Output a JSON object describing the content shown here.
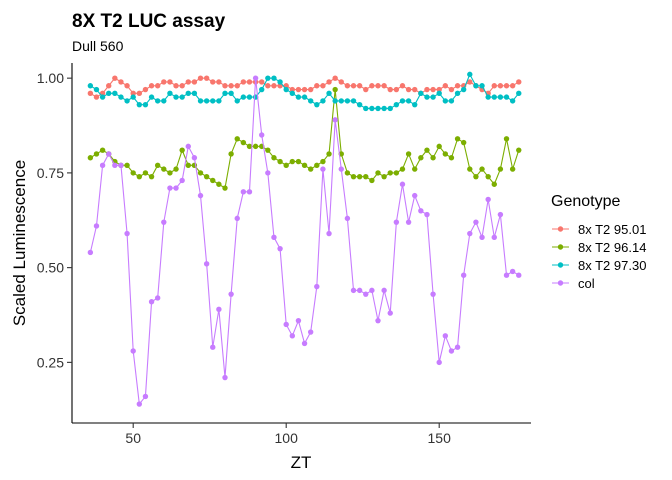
{
  "chart_data": {
    "type": "line",
    "title": "8X T2 LUC assay",
    "subtitle": "Dull 560",
    "xlabel": "ZT",
    "ylabel": "Scaled Luminescence",
    "xlim": [
      30,
      180
    ],
    "ylim": [
      0.09,
      1.04
    ],
    "xticks": [
      50,
      100,
      150
    ],
    "yticks": [
      0.25,
      0.5,
      0.75,
      1.0
    ],
    "xtick_labels": [
      "50",
      "100",
      "150"
    ],
    "ytick_labels": [
      "0.25",
      "0.50",
      "0.75",
      "1.00"
    ],
    "grid": false,
    "legend": {
      "title": "Genotype",
      "position": "right"
    },
    "x": [
      36,
      38,
      40,
      42,
      44,
      46,
      48,
      50,
      52,
      54,
      56,
      58,
      60,
      62,
      64,
      66,
      68,
      70,
      72,
      74,
      76,
      78,
      80,
      82,
      84,
      86,
      88,
      90,
      92,
      94,
      96,
      98,
      100,
      102,
      104,
      106,
      108,
      110,
      112,
      114,
      116,
      118,
      120,
      122,
      124,
      126,
      128,
      130,
      132,
      134,
      136,
      138,
      140,
      142,
      144,
      146,
      148,
      150,
      152,
      154,
      156,
      158,
      160,
      162,
      164,
      166,
      168,
      170,
      172,
      174,
      176
    ],
    "series": [
      {
        "name": "8x T2 95.01",
        "color": "#F8766D",
        "values": [
          0.96,
          0.95,
          0.96,
          0.98,
          1.0,
          0.99,
          0.98,
          0.96,
          0.96,
          0.97,
          0.98,
          0.98,
          0.99,
          0.99,
          0.98,
          0.98,
          0.99,
          0.99,
          1.0,
          1.0,
          0.99,
          0.99,
          0.98,
          0.98,
          0.98,
          0.99,
          0.99,
          0.99,
          0.99,
          0.98,
          0.98,
          0.98,
          0.98,
          0.97,
          0.97,
          0.97,
          0.97,
          0.98,
          0.98,
          0.99,
          1.0,
          0.99,
          0.98,
          0.98,
          0.98,
          0.97,
          0.98,
          0.98,
          0.98,
          0.97,
          0.97,
          0.98,
          0.97,
          0.97,
          0.96,
          0.97,
          0.97,
          0.97,
          0.98,
          0.97,
          0.98,
          0.98,
          0.99,
          0.98,
          0.97,
          0.96,
          0.98,
          0.98,
          0.98,
          0.98,
          0.99
        ]
      },
      {
        "name": "8x T2 96.14",
        "color": "#7CAE00",
        "values": [
          0.79,
          0.8,
          0.81,
          0.8,
          0.78,
          0.77,
          0.77,
          0.75,
          0.74,
          0.75,
          0.74,
          0.77,
          0.76,
          0.75,
          0.76,
          0.81,
          0.77,
          0.77,
          0.75,
          0.74,
          0.73,
          0.72,
          0.71,
          0.8,
          0.84,
          0.83,
          0.82,
          0.82,
          0.82,
          0.81,
          0.79,
          0.78,
          0.77,
          0.78,
          0.78,
          0.77,
          0.76,
          0.77,
          0.78,
          0.8,
          0.97,
          0.8,
          0.75,
          0.74,
          0.74,
          0.74,
          0.73,
          0.75,
          0.74,
          0.75,
          0.75,
          0.76,
          0.8,
          0.76,
          0.79,
          0.81,
          0.79,
          0.82,
          0.8,
          0.79,
          0.84,
          0.83,
          0.76,
          0.74,
          0.76,
          0.74,
          0.72,
          0.76,
          0.84,
          0.76,
          0.81
        ]
      },
      {
        "name": "8x T2 97.30",
        "color": "#00BFC4",
        "values": [
          0.98,
          0.97,
          0.95,
          0.96,
          0.96,
          0.95,
          0.94,
          0.95,
          0.93,
          0.93,
          0.95,
          0.94,
          0.94,
          0.96,
          0.95,
          0.95,
          0.96,
          0.96,
          0.94,
          0.94,
          0.94,
          0.94,
          0.96,
          0.96,
          0.94,
          0.95,
          0.95,
          0.95,
          0.97,
          1.0,
          1.0,
          0.99,
          0.97,
          0.96,
          0.95,
          0.95,
          0.94,
          0.93,
          0.94,
          0.96,
          0.94,
          0.94,
          0.94,
          0.94,
          0.93,
          0.92,
          0.92,
          0.92,
          0.92,
          0.92,
          0.93,
          0.94,
          0.94,
          0.93,
          0.96,
          0.95,
          0.95,
          0.96,
          0.94,
          0.94,
          0.96,
          0.97,
          1.01,
          0.98,
          0.98,
          0.95,
          0.95,
          0.95,
          0.95,
          0.94,
          0.96
        ]
      },
      {
        "name": "col",
        "color": "#C77CFF",
        "values": [
          0.54,
          0.61,
          0.77,
          0.8,
          0.77,
          0.77,
          0.59,
          0.28,
          0.14,
          0.16,
          0.41,
          0.42,
          0.62,
          0.71,
          0.71,
          0.73,
          0.82,
          0.79,
          0.69,
          0.51,
          0.29,
          0.39,
          0.21,
          0.43,
          0.63,
          0.7,
          0.7,
          1.0,
          0.85,
          0.75,
          0.58,
          0.55,
          0.35,
          0.32,
          0.36,
          0.3,
          0.33,
          0.45,
          0.76,
          0.59,
          0.89,
          0.76,
          0.63,
          0.44,
          0.44,
          0.43,
          0.44,
          0.36,
          0.44,
          0.38,
          0.62,
          0.72,
          0.62,
          0.69,
          0.65,
          0.64,
          0.43,
          0.25,
          0.32,
          0.28,
          0.29,
          0.48,
          0.59,
          0.62,
          0.58,
          0.68,
          0.58,
          0.64,
          0.48,
          0.49,
          0.48
        ]
      }
    ]
  }
}
